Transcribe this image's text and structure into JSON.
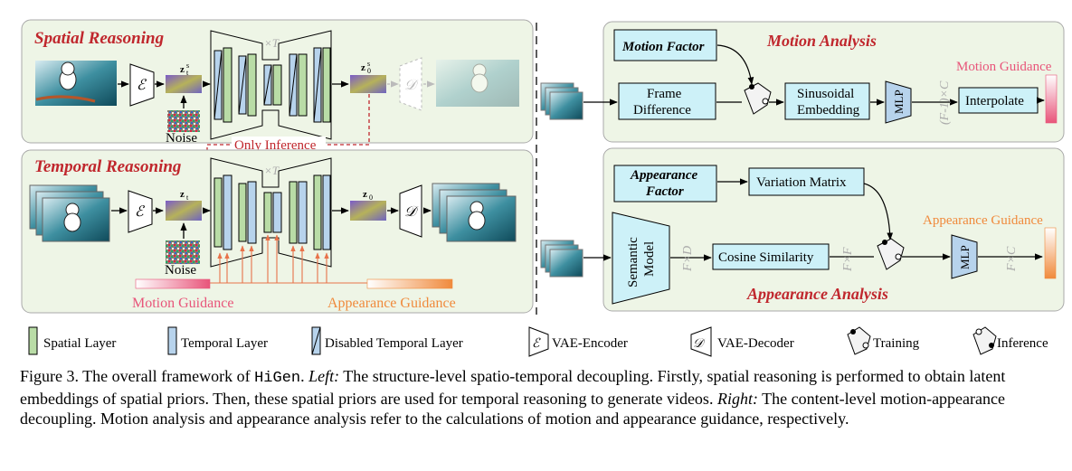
{
  "left": {
    "spatial_title": "Spatial Reasoning",
    "temporal_title": "Temporal Reasoning",
    "times_t": "×T",
    "zt_spatial": "z",
    "z0_spatial": "z",
    "zt_temporal": "z",
    "z0_temporal": "z",
    "noise_label": "Noise",
    "only_inference": "Only Inference",
    "motion_guidance": "Motion Guidance",
    "appearance_guidance": "Appearance Guidance",
    "encoder_glyph": "ℰ",
    "decoder_glyph": "𝒟"
  },
  "motion": {
    "title": "Motion Analysis",
    "factor": "Motion Factor",
    "frame_diff_1": "Frame",
    "frame_diff_2": "Difference",
    "sin_1": "Sinusoidal",
    "sin_2": "Embedding",
    "mlp": "MLP",
    "dim": "(F-1)×C",
    "interpolate": "Interpolate",
    "guidance": "Motion Guidance"
  },
  "appearance": {
    "title": "Appearance Analysis",
    "factor_1": "Appearance",
    "factor_2": "Factor",
    "variation": "Variation Matrix",
    "semantic_1": "Semantic",
    "semantic_2": "Model",
    "fxd": "F×D",
    "cosine": "Cosine Similarity",
    "fxf": "F×F",
    "mlp": "MLP",
    "fxc": "F×C",
    "guidance": "Appearance Guidance"
  },
  "legend": {
    "spatial": "Spatial Layer",
    "temporal": "Temporal Layer",
    "disabled": "Disabled Temporal Layer",
    "encoder": "VAE-Encoder",
    "decoder": "VAE-Decoder",
    "training": "Training",
    "inference": "Inference"
  },
  "caption": {
    "fig": "Figure 3. The overall framework of ",
    "name": "HiGen",
    "p1": ". ",
    "left_label": "Left:",
    "p2": " The structure-level spatio-temporal decoupling. Firstly, spatial reasoning is performed to obtain latent embeddings of spatial priors. Then, these spatial priors are used for temporal reasoning to generate videos. ",
    "right_label": "Right:",
    "p3": " The content-level motion-appearance decoupling. Motion analysis and appearance analysis refer to the calculations of motion and appearance guidance, respectively."
  },
  "colors": {
    "panel_bg": "#eef5e6",
    "spatial_layer": "#b9dca6",
    "temporal_layer": "#b7d3ec",
    "box_cyan": "#cdf1f8",
    "title_red": "#c0272d",
    "motion_pink": "#e8557a",
    "appearance_orange": "#f08a3c"
  }
}
